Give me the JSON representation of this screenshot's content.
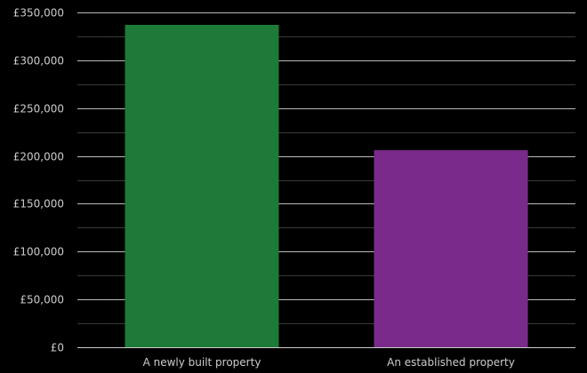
{
  "chart_data": {
    "type": "bar",
    "categories": [
      "A newly built property",
      "An established property"
    ],
    "values": [
      337000,
      206000
    ],
    "colors": [
      "#1e7a38",
      "#7a2a8a"
    ],
    "ylim": [
      0,
      350000
    ],
    "yticks": [
      0,
      50000,
      100000,
      150000,
      200000,
      250000,
      300000,
      350000
    ],
    "ytick_labels": [
      "£0",
      "£50,000",
      "£100,000",
      "£150,000",
      "£200,000",
      "£250,000",
      "£300,000",
      "£350,000"
    ],
    "grid": true,
    "minor_grid": true,
    "background": "#000000",
    "grid_color": "#ffffff",
    "label_color": "#cccccc"
  }
}
